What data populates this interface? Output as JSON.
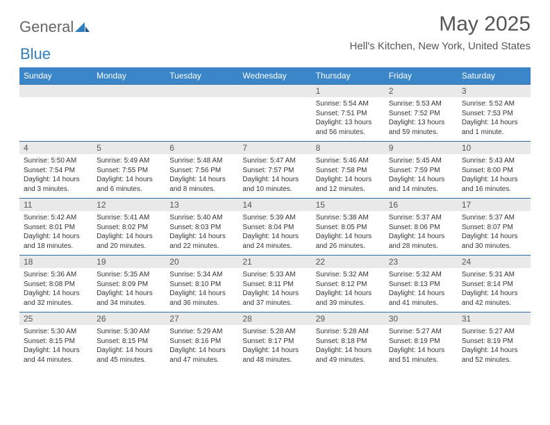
{
  "logo": {
    "text1": "General",
    "text2": "Blue"
  },
  "title": "May 2025",
  "location": "Hell's Kitchen, New York, United States",
  "colors": {
    "header_bg": "#3a86c8",
    "header_text": "#ffffff",
    "daynum_bg": "#e9e9e9",
    "row_border": "#2f6aa0",
    "text": "#333333",
    "title_text": "#555555"
  },
  "day_headers": [
    "Sunday",
    "Monday",
    "Tuesday",
    "Wednesday",
    "Thursday",
    "Friday",
    "Saturday"
  ],
  "weeks": [
    [
      {
        "blank": true
      },
      {
        "blank": true
      },
      {
        "blank": true
      },
      {
        "blank": true
      },
      {
        "n": "1",
        "sunrise": "5:54 AM",
        "sunset": "7:51 PM",
        "daylight": "13 hours and 56 minutes."
      },
      {
        "n": "2",
        "sunrise": "5:53 AM",
        "sunset": "7:52 PM",
        "daylight": "13 hours and 59 minutes."
      },
      {
        "n": "3",
        "sunrise": "5:52 AM",
        "sunset": "7:53 PM",
        "daylight": "14 hours and 1 minute."
      }
    ],
    [
      {
        "n": "4",
        "sunrise": "5:50 AM",
        "sunset": "7:54 PM",
        "daylight": "14 hours and 3 minutes."
      },
      {
        "n": "5",
        "sunrise": "5:49 AM",
        "sunset": "7:55 PM",
        "daylight": "14 hours and 6 minutes."
      },
      {
        "n": "6",
        "sunrise": "5:48 AM",
        "sunset": "7:56 PM",
        "daylight": "14 hours and 8 minutes."
      },
      {
        "n": "7",
        "sunrise": "5:47 AM",
        "sunset": "7:57 PM",
        "daylight": "14 hours and 10 minutes."
      },
      {
        "n": "8",
        "sunrise": "5:46 AM",
        "sunset": "7:58 PM",
        "daylight": "14 hours and 12 minutes."
      },
      {
        "n": "9",
        "sunrise": "5:45 AM",
        "sunset": "7:59 PM",
        "daylight": "14 hours and 14 minutes."
      },
      {
        "n": "10",
        "sunrise": "5:43 AM",
        "sunset": "8:00 PM",
        "daylight": "14 hours and 16 minutes."
      }
    ],
    [
      {
        "n": "11",
        "sunrise": "5:42 AM",
        "sunset": "8:01 PM",
        "daylight": "14 hours and 18 minutes."
      },
      {
        "n": "12",
        "sunrise": "5:41 AM",
        "sunset": "8:02 PM",
        "daylight": "14 hours and 20 minutes."
      },
      {
        "n": "13",
        "sunrise": "5:40 AM",
        "sunset": "8:03 PM",
        "daylight": "14 hours and 22 minutes."
      },
      {
        "n": "14",
        "sunrise": "5:39 AM",
        "sunset": "8:04 PM",
        "daylight": "14 hours and 24 minutes."
      },
      {
        "n": "15",
        "sunrise": "5:38 AM",
        "sunset": "8:05 PM",
        "daylight": "14 hours and 26 minutes."
      },
      {
        "n": "16",
        "sunrise": "5:37 AM",
        "sunset": "8:06 PM",
        "daylight": "14 hours and 28 minutes."
      },
      {
        "n": "17",
        "sunrise": "5:37 AM",
        "sunset": "8:07 PM",
        "daylight": "14 hours and 30 minutes."
      }
    ],
    [
      {
        "n": "18",
        "sunrise": "5:36 AM",
        "sunset": "8:08 PM",
        "daylight": "14 hours and 32 minutes."
      },
      {
        "n": "19",
        "sunrise": "5:35 AM",
        "sunset": "8:09 PM",
        "daylight": "14 hours and 34 minutes."
      },
      {
        "n": "20",
        "sunrise": "5:34 AM",
        "sunset": "8:10 PM",
        "daylight": "14 hours and 36 minutes."
      },
      {
        "n": "21",
        "sunrise": "5:33 AM",
        "sunset": "8:11 PM",
        "daylight": "14 hours and 37 minutes."
      },
      {
        "n": "22",
        "sunrise": "5:32 AM",
        "sunset": "8:12 PM",
        "daylight": "14 hours and 39 minutes."
      },
      {
        "n": "23",
        "sunrise": "5:32 AM",
        "sunset": "8:13 PM",
        "daylight": "14 hours and 41 minutes."
      },
      {
        "n": "24",
        "sunrise": "5:31 AM",
        "sunset": "8:14 PM",
        "daylight": "14 hours and 42 minutes."
      }
    ],
    [
      {
        "n": "25",
        "sunrise": "5:30 AM",
        "sunset": "8:15 PM",
        "daylight": "14 hours and 44 minutes."
      },
      {
        "n": "26",
        "sunrise": "5:30 AM",
        "sunset": "8:15 PM",
        "daylight": "14 hours and 45 minutes."
      },
      {
        "n": "27",
        "sunrise": "5:29 AM",
        "sunset": "8:16 PM",
        "daylight": "14 hours and 47 minutes."
      },
      {
        "n": "28",
        "sunrise": "5:28 AM",
        "sunset": "8:17 PM",
        "daylight": "14 hours and 48 minutes."
      },
      {
        "n": "29",
        "sunrise": "5:28 AM",
        "sunset": "8:18 PM",
        "daylight": "14 hours and 49 minutes."
      },
      {
        "n": "30",
        "sunrise": "5:27 AM",
        "sunset": "8:19 PM",
        "daylight": "14 hours and 51 minutes."
      },
      {
        "n": "31",
        "sunrise": "5:27 AM",
        "sunset": "8:19 PM",
        "daylight": "14 hours and 52 minutes."
      }
    ]
  ],
  "labels": {
    "sunrise": "Sunrise: ",
    "sunset": "Sunset: ",
    "daylight": "Daylight: "
  }
}
